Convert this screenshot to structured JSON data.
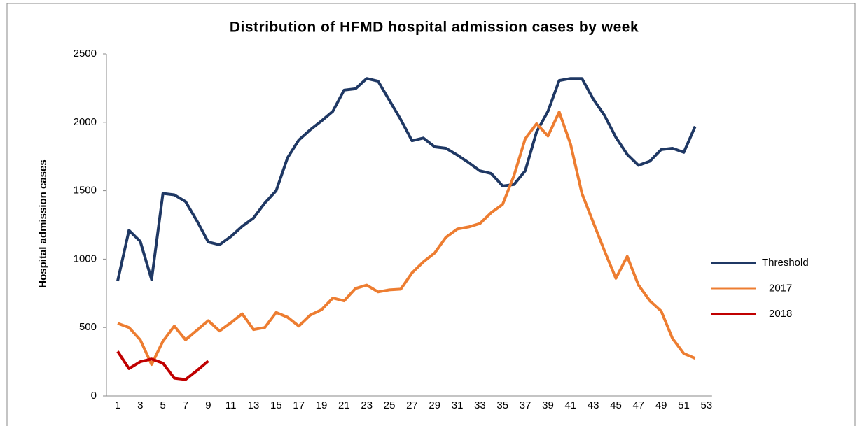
{
  "chart_data": {
    "type": "line",
    "title": "Distribution  of  HFMD  hospital  admission  cases  by  week",
    "y_label": "Hospital admission cases",
    "categories": [
      1,
      null,
      3,
      null,
      5,
      null,
      7,
      null,
      9,
      null,
      11,
      null,
      13,
      null,
      15,
      null,
      17,
      null,
      19,
      null,
      21,
      null,
      23,
      null,
      25,
      null,
      27,
      null,
      29,
      null,
      31,
      null,
      33,
      null,
      35,
      null,
      37,
      null,
      39,
      null,
      41,
      null,
      43,
      null,
      45,
      null,
      47,
      null,
      49,
      null,
      51,
      null,
      53
    ],
    "ylim": [
      0,
      2500
    ],
    "yticks": [
      0,
      500,
      1000,
      1500,
      2000,
      2500
    ],
    "grid": false,
    "legend": "right",
    "series": [
      {
        "name": "Threshold",
        "color": "#1f3864",
        "values": [
          840,
          1210,
          1130,
          850,
          1480,
          1470,
          1420,
          1280,
          1125,
          1105,
          1165,
          1240,
          1300,
          1410,
          1500,
          1740,
          1870,
          1945,
          2010,
          2080,
          2235,
          2245,
          2320,
          2300,
          2160,
          2020,
          1865,
          1885,
          1820,
          1810,
          1760,
          1705,
          1645,
          1625,
          1535,
          1545,
          1645,
          1930,
          2080,
          2305,
          2320,
          2320,
          2170,
          2050,
          1890,
          1765,
          1685,
          1715,
          1800,
          1810,
          1780,
          1970,
          null
        ]
      },
      {
        "name": "2017",
        "color": "#ed7d31",
        "values": [
          530,
          500,
          410,
          230,
          400,
          510,
          410,
          480,
          550,
          475,
          535,
          600,
          485,
          500,
          610,
          575,
          510,
          590,
          630,
          715,
          695,
          785,
          810,
          760,
          775,
          780,
          900,
          980,
          1045,
          1160,
          1220,
          1235,
          1260,
          1340,
          1400,
          1610,
          1880,
          1990,
          1900,
          2075,
          1840,
          1480,
          1270,
          1060,
          860,
          1020,
          810,
          695,
          620,
          420,
          310,
          275,
          null
        ]
      },
      {
        "name": "2018",
        "color": "#c00000",
        "values": [
          325,
          200,
          250,
          270,
          240,
          130,
          120,
          185,
          255,
          null,
          null,
          null,
          null,
          null,
          null,
          null,
          null,
          null,
          null,
          null,
          null,
          null,
          null,
          null,
          null,
          null,
          null,
          null,
          null,
          null,
          null,
          null,
          null,
          null,
          null,
          null,
          null,
          null,
          null,
          null,
          null,
          null,
          null,
          null,
          null,
          null,
          null,
          null,
          null,
          null,
          null,
          null,
          null
        ]
      }
    ]
  }
}
